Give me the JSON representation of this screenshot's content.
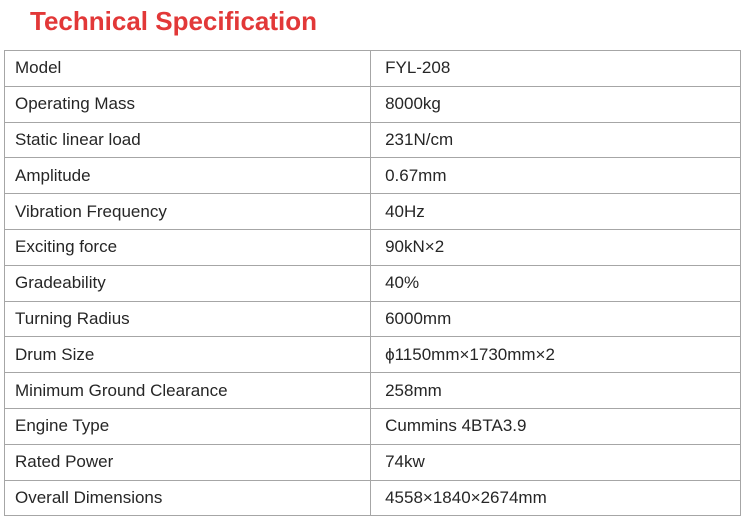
{
  "page": {
    "title": "Technical Specification"
  },
  "colors": {
    "title_red": "#e23838",
    "border_gray": "#a6a6a6",
    "text_dark": "#262626"
  },
  "table": {
    "rows": [
      {
        "label": "Model",
        "value": "FYL-208"
      },
      {
        "label": "Operating Mass",
        "value": "8000kg"
      },
      {
        "label": "Static linear load",
        "value": "231N/cm"
      },
      {
        "label": "Amplitude",
        "value": "0.67mm"
      },
      {
        "label": "Vibration Frequency",
        "value": "40Hz"
      },
      {
        "label": "Exciting force",
        "value": "90kN×2"
      },
      {
        "label": "Gradeability",
        "value": "40%"
      },
      {
        "label": "Turning Radius",
        "value": "6000mm"
      },
      {
        "label": "Drum Size",
        "value": "ϕ1150mm×1730mm×2"
      },
      {
        "label": "Minimum Ground Clearance",
        "value": "258mm"
      },
      {
        "label": "Engine Type",
        "value": "Cummins 4BTA3.9"
      },
      {
        "label": "Rated Power",
        "value": "74kw"
      },
      {
        "label": "Overall Dimensions",
        "value": "4558×1840×2674mm"
      }
    ]
  }
}
